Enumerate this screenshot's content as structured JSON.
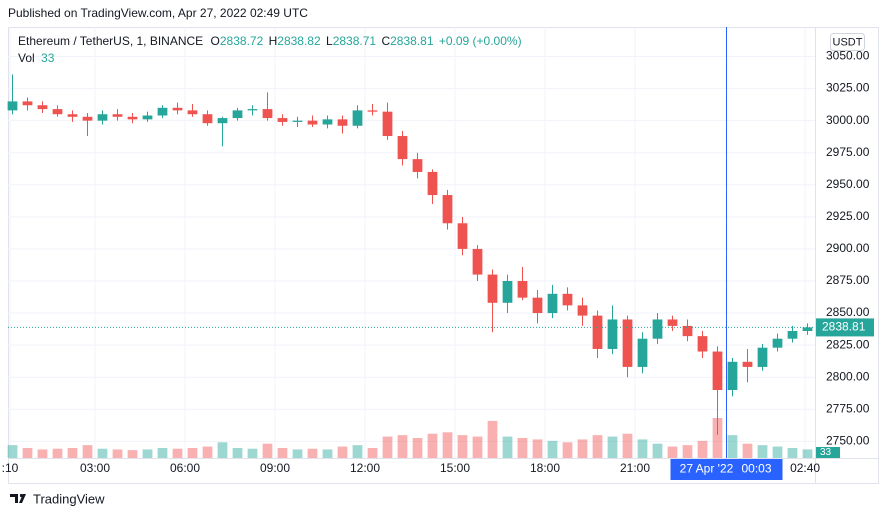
{
  "published": "Published on TradingView.com, Apr 27, 2022 02:49 UTC",
  "legend": {
    "symbol": "Ethereum / TetherUS, 1, BINANCE",
    "open_label": "O",
    "open": 2838.72,
    "high_label": "H",
    "high": 2838.82,
    "low_label": "L",
    "low": 2838.71,
    "close_label": "C",
    "close": 2838.81,
    "change": "+0.09 (+0.00%)",
    "volume_label": "Vol",
    "volume": 33
  },
  "currency": "USDT",
  "last_price": 2838.81,
  "footer": {
    "brand": "TradingView"
  },
  "chart_data": {
    "type": "candlestick",
    "up_color": "#26a69a",
    "down_color": "#ef5350",
    "grid": true,
    "x": [
      0,
      0.5,
      1,
      1.5,
      2,
      2.5,
      3,
      3.5,
      4,
      4.5,
      5,
      5.5,
      6,
      6.5,
      7,
      7.5,
      8,
      8.5,
      9,
      9.5,
      10,
      10.5,
      11,
      11.5,
      12,
      12.5,
      13,
      13.5,
      14,
      14.5,
      15,
      15.5,
      16,
      16.5,
      17,
      17.5,
      18,
      18.5,
      19,
      19.5,
      20,
      20.5,
      21,
      21.5,
      22,
      22.5,
      23,
      23.5,
      24,
      24.5,
      25,
      25.5,
      26,
      26.5
    ],
    "open": [
      3008,
      3015,
      3012,
      3009,
      3005,
      3003,
      3000,
      3005,
      3003,
      3001,
      3004,
      3010,
      3008,
      3005,
      2998,
      3002,
      3008,
      3009,
      3002,
      2999,
      3000,
      2997,
      3001,
      2996,
      3008,
      3007,
      2988,
      2970,
      2960,
      2942,
      2920,
      2900,
      2880,
      2858,
      2875,
      2862,
      2850,
      2865,
      2856,
      2848,
      2822,
      2845,
      2808,
      2830,
      2845,
      2840,
      2832,
      2820,
      2790,
      2812,
      2808,
      2823,
      2830,
      2836
    ],
    "high": [
      3036,
      3018,
      3015,
      3012,
      3008,
      3006,
      3008,
      3009,
      3006,
      3007,
      3012,
      3014,
      3013,
      3008,
      3003,
      3010,
      3012,
      3022,
      3005,
      3003,
      3004,
      3004,
      3004,
      3012,
      3013,
      3014,
      2992,
      2975,
      2962,
      2946,
      2925,
      2903,
      2884,
      2880,
      2886,
      2868,
      2872,
      2870,
      2862,
      2852,
      2856,
      2848,
      2835,
      2850,
      2848,
      2845,
      2836,
      2824,
      2815,
      2822,
      2826,
      2834,
      2840,
      2842
    ],
    "low": [
      3005,
      3008,
      3006,
      3003,
      2999,
      2988,
      2997,
      3000,
      2998,
      2999,
      3002,
      3005,
      3003,
      2996,
      2980,
      3000,
      3004,
      3000,
      2996,
      2995,
      2995,
      2994,
      2990,
      2994,
      3004,
      2985,
      2965,
      2955,
      2935,
      2915,
      2895,
      2875,
      2835,
      2850,
      2860,
      2842,
      2846,
      2852,
      2840,
      2815,
      2818,
      2800,
      2803,
      2826,
      2836,
      2828,
      2815,
      2755,
      2785,
      2796,
      2805,
      2820,
      2827,
      2833
    ],
    "close": [
      3015,
      3012,
      3009,
      3005,
      3003,
      3000,
      3005,
      3003,
      3001,
      3004,
      3010,
      3008,
      3005,
      2998,
      3002,
      3008,
      3009,
      3002,
      2999,
      3000,
      2997,
      3001,
      2996,
      3008,
      3007,
      2988,
      2970,
      2960,
      2942,
      2920,
      2900,
      2880,
      2858,
      2875,
      2862,
      2850,
      2865,
      2856,
      2848,
      2822,
      2845,
      2808,
      2830,
      2845,
      2840,
      2832,
      2820,
      2790,
      2812,
      2808,
      2823,
      2830,
      2836,
      2838.81
    ],
    "volume": [
      900,
      700,
      600,
      650,
      700,
      900,
      650,
      600,
      550,
      600,
      700,
      650,
      700,
      800,
      1100,
      700,
      650,
      1000,
      700,
      600,
      650,
      600,
      800,
      900,
      700,
      1500,
      1600,
      1400,
      1700,
      1800,
      1600,
      1500,
      2600,
      1500,
      1400,
      1300,
      1200,
      1100,
      1300,
      1600,
      1500,
      1700,
      1300,
      1000,
      800,
      900,
      1200,
      2800,
      1600,
      1000,
      900,
      800,
      700,
      600
    ],
    "xlim": [
      0.1,
      27
    ],
    "xticks": [
      {
        "value": 0.167,
        "label": ":10"
      },
      {
        "value": 3,
        "label": "03:00"
      },
      {
        "value": 6,
        "label": "06:00"
      },
      {
        "value": 9,
        "label": "09:00"
      },
      {
        "value": 12,
        "label": "12:00"
      },
      {
        "value": 15,
        "label": "15:00"
      },
      {
        "value": 18,
        "label": "18:00"
      },
      {
        "value": 21,
        "label": "21:00"
      },
      {
        "value": 26.67,
        "label": "02:40"
      }
    ],
    "ylim": [
      2737,
      3073
    ],
    "yticks": [
      {
        "value": 2750,
        "label": "2750.00"
      },
      {
        "value": 2775,
        "label": "2775.00"
      },
      {
        "value": 2800,
        "label": "2800.00"
      },
      {
        "value": 2825,
        "label": "2825.00"
      },
      {
        "value": 2850,
        "label": "2850.00"
      },
      {
        "value": 2875,
        "label": "2875.00"
      },
      {
        "value": 2900,
        "label": "2900.00"
      },
      {
        "value": 2925,
        "label": "2925.00"
      },
      {
        "value": 2950,
        "label": "2950.00"
      },
      {
        "value": 2975,
        "label": "2975.00"
      },
      {
        "value": 3000,
        "label": "3000.00"
      },
      {
        "value": 3025,
        "label": "3025.00"
      },
      {
        "value": 3050,
        "label": "3050.00"
      }
    ],
    "crosshair": {
      "x": 24.05,
      "date_label": "27 Apr '22",
      "time_label": "00:03",
      "color": "#2962ff"
    }
  }
}
